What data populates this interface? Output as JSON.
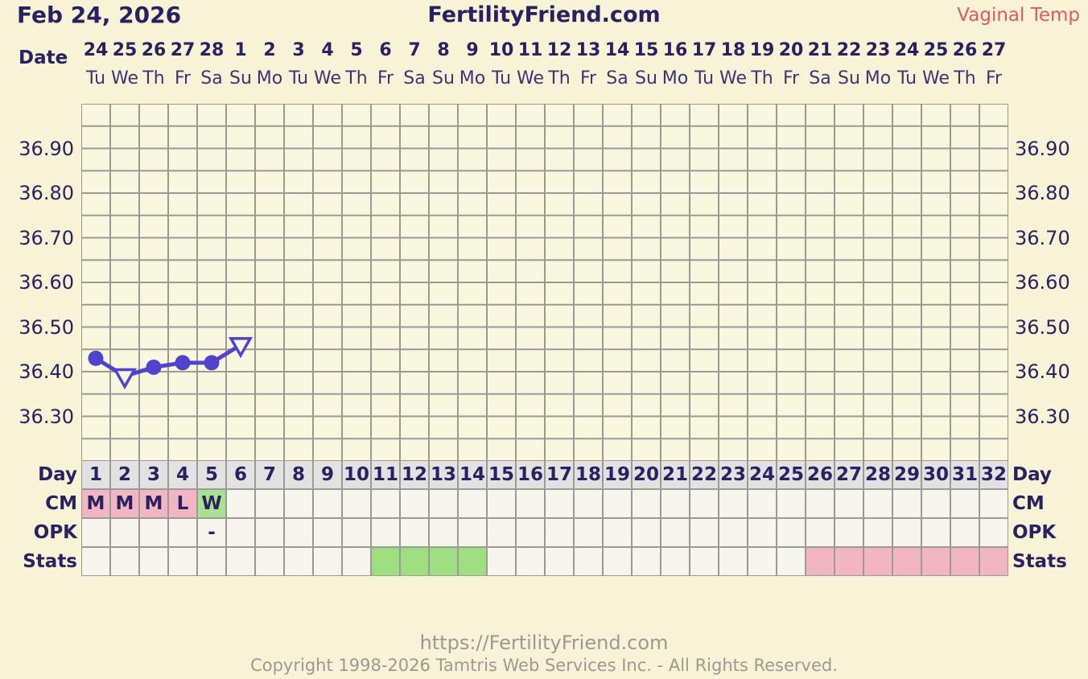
{
  "header": {
    "date_title": "Feb 24, 2026",
    "site_title": "FertilityFriend.com",
    "series_label": "Vaginal Temp"
  },
  "axis": {
    "date_label": "Date",
    "dates": [
      "24",
      "25",
      "26",
      "27",
      "28",
      "1",
      "2",
      "3",
      "4",
      "5",
      "6",
      "7",
      "8",
      "9",
      "10",
      "11",
      "12",
      "13",
      "14",
      "15",
      "16",
      "17",
      "18",
      "19",
      "20",
      "21",
      "22",
      "23",
      "24",
      "25",
      "26",
      "27"
    ],
    "weekdays": [
      "Tu",
      "We",
      "Th",
      "Fr",
      "Sa",
      "Su",
      "Mo",
      "Tu",
      "We",
      "Th",
      "Fr",
      "Sa",
      "Su",
      "Mo",
      "Tu",
      "We",
      "Th",
      "Fr",
      "Sa",
      "Su",
      "Mo",
      "Tu",
      "We",
      "Th",
      "Fr",
      "Sa",
      "Su",
      "Mo",
      "Tu",
      "We",
      "Th",
      "Fr"
    ]
  },
  "chart_data": {
    "type": "line",
    "title": "Feb 24, 2026",
    "series_name": "Vaginal Temp",
    "x_axis": {
      "label": "Day",
      "count": 32
    },
    "y_axis": {
      "min": 36.2,
      "max": 37.0,
      "step": 0.05,
      "tick_labels": [
        "36.90",
        "36.80",
        "36.70",
        "36.60",
        "36.50",
        "36.40",
        "36.30"
      ]
    },
    "grid": true,
    "legend_position": "top-right",
    "points": [
      {
        "day": 1,
        "temp": 36.43,
        "marker": "dot"
      },
      {
        "day": 2,
        "temp": 36.39,
        "marker": "open-triangle"
      },
      {
        "day": 3,
        "temp": 36.41,
        "marker": "dot"
      },
      {
        "day": 4,
        "temp": 36.42,
        "marker": "dot"
      },
      {
        "day": 5,
        "temp": 36.42,
        "marker": "dot"
      },
      {
        "day": 6,
        "temp": 36.46,
        "marker": "open-triangle"
      }
    ]
  },
  "table": {
    "row_labels": [
      "Day",
      "CM",
      "OPK",
      "Stats"
    ],
    "rows": [
      {
        "name": "day",
        "style": "header",
        "values": [
          "1",
          "2",
          "3",
          "4",
          "5",
          "6",
          "7",
          "8",
          "9",
          "10",
          "11",
          "12",
          "13",
          "14",
          "15",
          "16",
          "17",
          "18",
          "19",
          "20",
          "21",
          "22",
          "23",
          "24",
          "25",
          "26",
          "27",
          "28",
          "29",
          "30",
          "31",
          "32"
        ]
      },
      {
        "name": "cm",
        "cells": {
          "0": {
            "text": "M",
            "bg": "pink"
          },
          "1": {
            "text": "M",
            "bg": "pink"
          },
          "2": {
            "text": "M",
            "bg": "pink"
          },
          "3": {
            "text": "L",
            "bg": "pink"
          },
          "4": {
            "text": "W",
            "bg": "green"
          }
        }
      },
      {
        "name": "opk",
        "cells": {
          "4": {
            "text": "-"
          }
        }
      },
      {
        "name": "stats",
        "cells": {
          "10": {
            "bg": "statsGreen"
          },
          "11": {
            "bg": "statsGreen"
          },
          "12": {
            "bg": "statsGreen"
          },
          "13": {
            "bg": "statsGreen"
          },
          "25": {
            "bg": "statsPink"
          },
          "26": {
            "bg": "statsPink"
          },
          "27": {
            "bg": "statsPink"
          },
          "28": {
            "bg": "statsPink"
          },
          "29": {
            "bg": "statsPink"
          },
          "30": {
            "bg": "statsPink"
          },
          "31": {
            "bg": "statsPink"
          }
        }
      }
    ]
  },
  "footer": {
    "url": "https://FertilityFriend.com",
    "copyright": "Copyright 1998-2026 Tamtris Web Services Inc. - All Rights Reserved."
  },
  "colors": {
    "background": "#f8f3d6",
    "chartBg": "#faf7e1",
    "grid": "#9b9b93",
    "navy": "#2a2163",
    "line": "#5044ce",
    "accentRed": "#e25862",
    "headerGray": "#e2e2e2",
    "cell": "#f6f6ee",
    "pink": "#f2b5c4",
    "green": "#a7e292",
    "statsGreen": "#9edd80",
    "statsPink": "#f2b5c4",
    "footerGray": "#9a9a92"
  }
}
